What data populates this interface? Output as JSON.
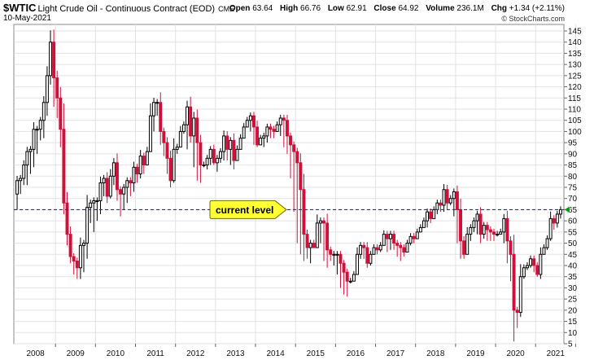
{
  "header": {
    "symbol": "$WTIC",
    "name": "Light Crude Oil - Continuous Contract (EOD)",
    "exchange": "CME",
    "date": "10-May-2021",
    "open_label": "Open",
    "open": "63.64",
    "high_label": "High",
    "high": "66.76",
    "low_label": "Low",
    "low": "62.91",
    "close_label": "Close",
    "close": "64.92",
    "volume_label": "Volume",
    "volume": "236.1M",
    "chg_label": "Chg",
    "chg": "+1.34 (+2.11%)",
    "brand": "© StockCharts.com"
  },
  "colors": {
    "up": "#000000",
    "down": "#d0103a",
    "grid": "#e2e2e2",
    "level_line": "#1f2bd6",
    "callout_fill": "#ffff33",
    "axis_arrow": "#00a000"
  },
  "chart_data": {
    "type": "candlestick",
    "period": "monthly",
    "ylim": [
      5,
      145
    ],
    "y_ticks": [
      5,
      10,
      15,
      20,
      25,
      30,
      35,
      40,
      45,
      50,
      55,
      60,
      65,
      70,
      75,
      80,
      85,
      90,
      95,
      100,
      105,
      110,
      115,
      120,
      125,
      130,
      135,
      140,
      145
    ],
    "x_ticks": [
      "2008",
      "2009",
      "2010",
      "2011",
      "2012",
      "2013",
      "2014",
      "2015",
      "2016",
      "2017",
      "2018",
      "2019",
      "2020",
      "2021"
    ],
    "grid": true,
    "annotation": {
      "label": "current level",
      "value": 65
    },
    "close": [
      78,
      79,
      85,
      91,
      92,
      101,
      101,
      105,
      113,
      125,
      140,
      124,
      115,
      101,
      68,
      54,
      44,
      42,
      39,
      49,
      50,
      66,
      68,
      69,
      69,
      77,
      79,
      71,
      80,
      86,
      74,
      72,
      75,
      78,
      77,
      84,
      81,
      89,
      85,
      91,
      107,
      113,
      113,
      100,
      95,
      88,
      78,
      92,
      93,
      100,
      103,
      111,
      98,
      106,
      95,
      85,
      85,
      88,
      92,
      86,
      88,
      91,
      98,
      92,
      96,
      87,
      92,
      97,
      102,
      105,
      107,
      102,
      94,
      97,
      98,
      102,
      101,
      100,
      103,
      106,
      105,
      98,
      94,
      91,
      86,
      74,
      54,
      48,
      50,
      48,
      59,
      60,
      59,
      47,
      45,
      45,
      45,
      41,
      37,
      33,
      33,
      36,
      45,
      49,
      48,
      41,
      45,
      48,
      47,
      49,
      54,
      52,
      54,
      50,
      49,
      48,
      46,
      50,
      53,
      52,
      55,
      57,
      60,
      64,
      61,
      65,
      68,
      67,
      74,
      68,
      70,
      73,
      65,
      51,
      45,
      54,
      57,
      60,
      63,
      54,
      58,
      56,
      55,
      54,
      54,
      55,
      61,
      51,
      45,
      20,
      19,
      35,
      39,
      40,
      43,
      40,
      36,
      45,
      48,
      52,
      61,
      59,
      63,
      65
    ],
    "low": [
      65,
      72,
      76,
      76,
      81,
      84,
      90,
      96,
      97,
      107,
      121,
      111,
      106,
      93,
      63,
      49,
      41,
      36,
      34,
      34,
      37,
      43,
      59,
      55,
      60,
      63,
      71,
      68,
      70,
      76,
      69,
      62,
      65,
      68,
      71,
      73,
      77,
      79,
      81,
      85,
      91,
      100,
      107,
      94,
      89,
      81,
      75,
      77,
      90,
      95,
      99,
      92,
      95,
      84,
      78,
      77,
      84,
      83,
      85,
      85,
      82,
      86,
      87,
      87,
      85,
      83,
      92,
      94,
      101,
      103,
      100,
      94,
      93,
      95,
      93,
      95,
      97,
      97,
      102,
      98,
      93,
      90,
      79,
      64,
      50,
      45,
      42,
      43,
      41,
      52,
      54,
      50,
      42,
      39,
      42,
      40,
      36,
      30,
      27,
      26,
      32,
      35,
      42,
      43,
      43,
      39,
      40,
      45,
      45,
      46,
      49,
      46,
      47,
      47,
      44,
      42,
      44,
      46,
      49,
      50,
      54,
      55,
      58,
      57,
      59,
      61,
      63,
      64,
      64,
      65,
      67,
      62,
      50,
      43,
      43,
      49,
      51,
      55,
      54,
      50,
      52,
      51,
      51,
      51,
      53,
      54,
      50,
      41,
      33,
      6,
      12,
      17,
      34,
      38,
      39,
      37,
      35,
      34,
      45,
      47,
      51,
      56,
      57,
      61
    ]
  }
}
